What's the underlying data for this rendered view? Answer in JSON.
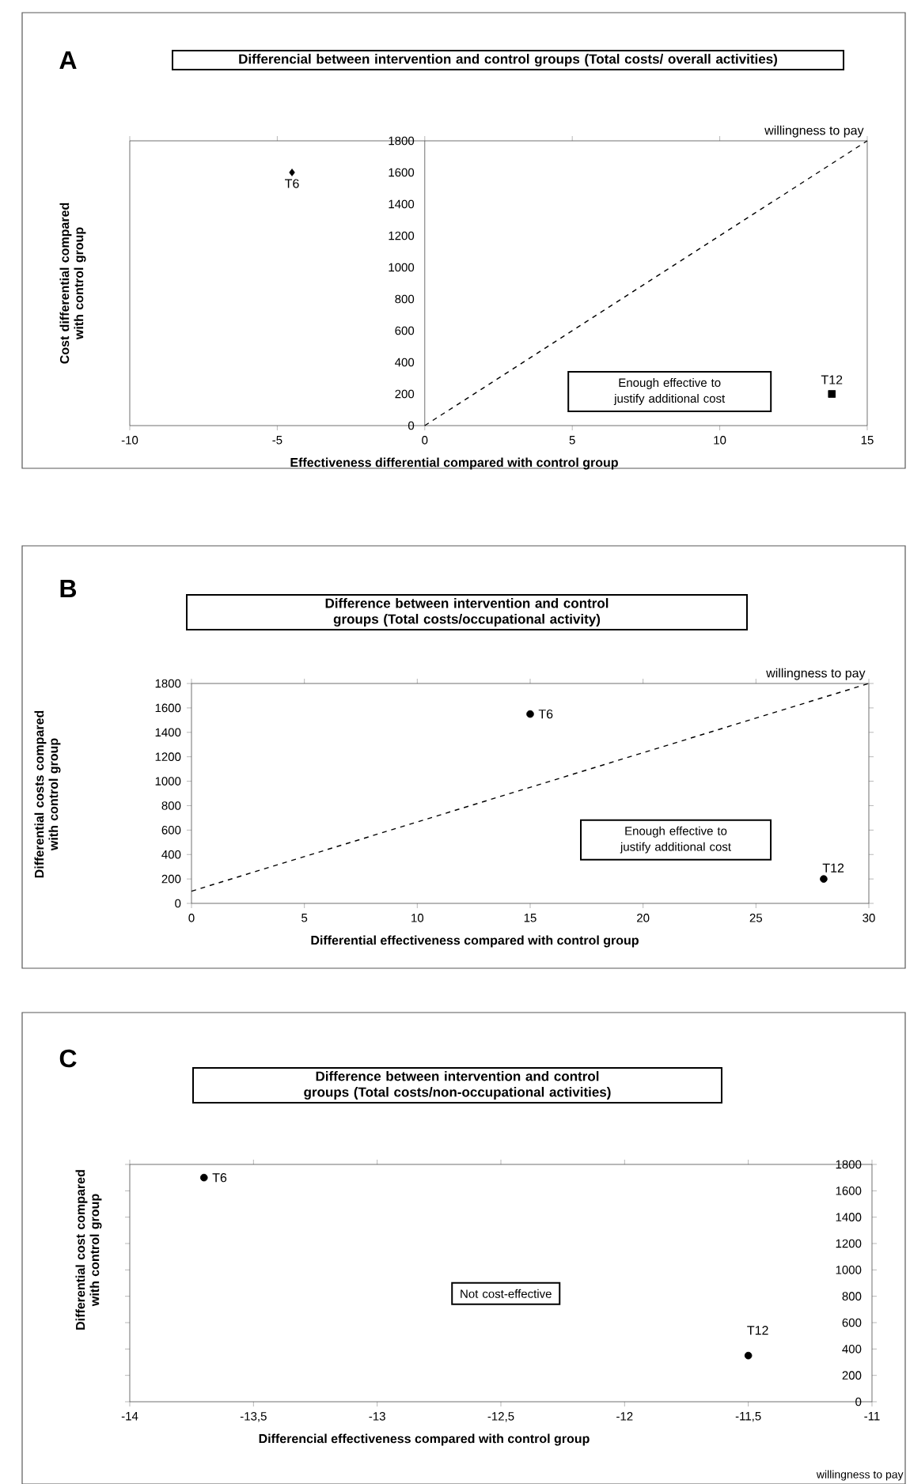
{
  "chart_data": [
    {
      "type": "scatter",
      "title": "Differencial between intervention and control groups (Total costs/ overall activities)",
      "xlabel": "Effectiveness differential compared with control group",
      "ylabel": "Cost differential compared with control group",
      "xlim": [
        -10,
        15
      ],
      "ylim": [
        0,
        1800
      ],
      "xticks": [
        -10,
        -5,
        0,
        5,
        10,
        15
      ],
      "yticks": [
        0,
        200,
        400,
        600,
        800,
        1000,
        1200,
        1400,
        1600,
        1800
      ],
      "grid": false,
      "series": [
        {
          "marker": "diamond",
          "color": "#000000",
          "x": [
            -4.5
          ],
          "values": [
            1600
          ]
        },
        {
          "marker": "square",
          "color": "#000000",
          "x": [
            13.8
          ],
          "values": [
            200
          ]
        },
        {
          "type": "line",
          "name": "willingness to pay",
          "line_style": "dashed",
          "color": "#000000",
          "x": [
            0,
            15
          ],
          "values": [
            0,
            1800
          ]
        }
      ],
      "annotations": [
        "A",
        "Enough effective to justify additional cost",
        {
          "text": "T6",
          "x": -4.5,
          "y": 1600
        },
        {
          "text": "T12",
          "x": 13.8,
          "y": 200
        }
      ]
    },
    {
      "type": "scatter",
      "title": "Difference between intervention and control groups (Total costs/occupational activity)",
      "xlabel": "Differential effectiveness compared with control group",
      "ylabel": "Differential costs compared with control group",
      "xlim": [
        0,
        30
      ],
      "ylim": [
        0,
        1800
      ],
      "xticks": [
        0,
        5,
        10,
        15,
        20,
        25,
        30
      ],
      "yticks": [
        0,
        200,
        400,
        600,
        800,
        1000,
        1200,
        1400,
        1600,
        1800
      ],
      "grid": false,
      "series": [
        {
          "marker": "circle",
          "color": "#000000",
          "x": [
            15,
            28
          ],
          "values": [
            1550,
            200
          ]
        },
        {
          "type": "line",
          "name": "willingness to pay",
          "line_style": "dashed",
          "color": "#000000",
          "x": [
            0,
            30
          ],
          "values": [
            100,
            1800
          ]
        }
      ],
      "annotations": [
        "B",
        "Enough effective to justify additional cost",
        {
          "text": "T6",
          "x": 15,
          "y": 1550
        },
        {
          "text": "T12",
          "x": 28,
          "y": 200
        }
      ]
    },
    {
      "type": "scatter",
      "title": "Difference between intervention and control groups (Total costs/non-occupational activities)",
      "xlabel": "Differencial effectiveness compared with control group",
      "ylabel": "Differential cost compared with control group",
      "xlim": [
        -14,
        -11
      ],
      "ylim": [
        0,
        1800
      ],
      "xticks": [
        -14,
        {
          "value": -13.5,
          "label": "-13,5"
        },
        -13,
        {
          "value": -12.5,
          "label": "-12,5"
        },
        -12,
        {
          "value": -11.5,
          "label": "-11,5"
        },
        -11
      ],
      "yticks": [
        0,
        200,
        400,
        600,
        800,
        1000,
        1200,
        1400,
        1600,
        1800
      ],
      "grid": false,
      "series": [
        {
          "marker": "circle",
          "color": "#000000",
          "x": [
            -13.7,
            -11.5
          ],
          "values": [
            1700,
            350
          ]
        }
      ],
      "annotations": [
        "C",
        "Not cost-effective",
        {
          "text": "T6",
          "x": -13.7,
          "y": 1700
        },
        {
          "text": "T12",
          "x": -11.5,
          "y": 350
        },
        "willingness to pay"
      ]
    }
  ]
}
